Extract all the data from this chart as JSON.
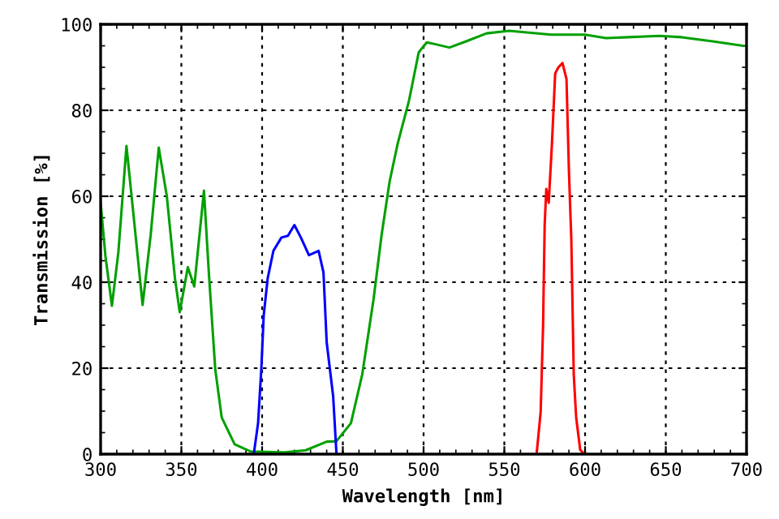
{
  "chart_data": {
    "type": "line",
    "xlabel": "Wavelength [nm]",
    "ylabel": "Transmission [%]",
    "xlim": [
      300,
      700
    ],
    "ylim": [
      0,
      100
    ],
    "xticks": [
      300,
      350,
      400,
      450,
      500,
      550,
      600,
      650,
      700
    ],
    "yticks": [
      0,
      20,
      40,
      60,
      80,
      100
    ],
    "grid": true,
    "legend": false,
    "marker": "none",
    "line_style": "solid",
    "series": [
      {
        "color": "#00a000",
        "x": [
          300,
          303,
          307,
          311,
          316,
          320,
          326,
          331,
          336,
          341,
          346,
          349,
          354,
          358,
          364,
          367,
          371,
          375,
          383,
          393,
          414,
          427,
          440,
          446,
          455,
          462,
          469,
          474,
          479,
          484,
          491,
          497,
          502,
          507,
          516,
          526,
          539,
          553,
          579,
          600,
          613,
          646,
          660,
          680,
          698
        ],
        "values": [
          58.5,
          46,
          34.5,
          47,
          71.7,
          57,
          34.7,
          51,
          71.3,
          60,
          41,
          33,
          43.5,
          39,
          61.3,
          42.3,
          19.7,
          8.5,
          2.3,
          0.6,
          0.4,
          0.9,
          2.9,
          3,
          7.2,
          18.5,
          36,
          51,
          63.5,
          72.3,
          82.3,
          93.5,
          95.8,
          95.4,
          94.6,
          96,
          97.9,
          98.5,
          97.6,
          97.6,
          96.8,
          97.3,
          97,
          96,
          95
        ]
      },
      {
        "color": "#0000ff",
        "x": [
          395,
          397.5,
          399.5,
          401,
          403.5,
          407,
          412,
          416,
          420,
          424,
          429,
          435,
          438,
          440,
          444,
          446
        ],
        "values": [
          0.4,
          7.2,
          19.7,
          32.3,
          41,
          47.3,
          50.4,
          50.8,
          53.3,
          50.4,
          46.3,
          47.3,
          42.3,
          26,
          13.5,
          0.4
        ]
      },
      {
        "color": "#ff0000",
        "x": [
          570,
          572.5,
          574,
          575,
          576,
          577.5,
          579.5,
          581.5,
          583.5,
          586,
          588.5,
          590,
          591.5,
          593,
          594.5,
          597,
          599.5
        ],
        "values": [
          0,
          9.8,
          29.8,
          53.5,
          61.7,
          58.5,
          72.3,
          88.6,
          90,
          91,
          87.3,
          66,
          49.8,
          18.5,
          8.5,
          1,
          0
        ]
      }
    ]
  }
}
